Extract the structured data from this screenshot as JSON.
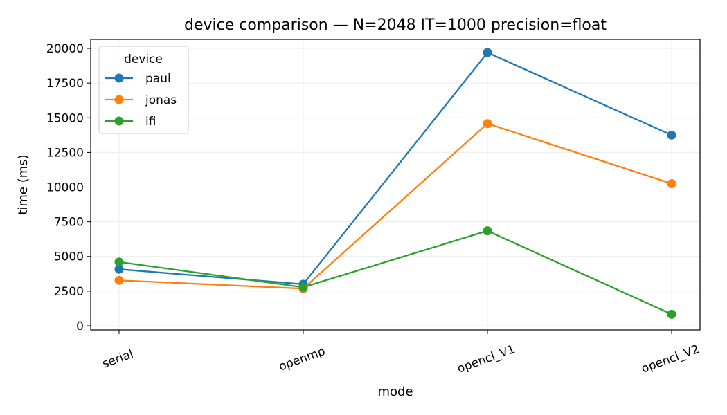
{
  "chart_data": {
    "type": "line",
    "title": "device comparison — N=2048 IT=1000 precision=float",
    "xlabel": "mode",
    "ylabel": "time (ms)",
    "categories": [
      "serial",
      "openmp",
      "opencl_V1",
      "opencl_V2"
    ],
    "ylim": [
      -300,
      20650
    ],
    "yticks": [
      0,
      2500,
      5000,
      7500,
      10000,
      12500,
      15000,
      17500,
      20000
    ],
    "grid": true,
    "legend": {
      "title": "device",
      "placement": "top-left"
    },
    "series": [
      {
        "name": "paul",
        "color": "#1f77b4",
        "values": [
          4080,
          3000,
          19700,
          13750
        ]
      },
      {
        "name": "jonas",
        "color": "#ff7f0e",
        "values": [
          3280,
          2680,
          14580,
          10250
        ]
      },
      {
        "name": "ifi",
        "color": "#2ca02c",
        "values": [
          4600,
          2780,
          6850,
          830
        ]
      }
    ]
  }
}
